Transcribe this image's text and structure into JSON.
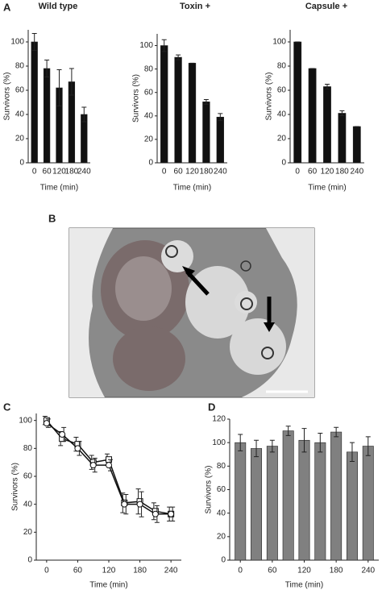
{
  "panels": {
    "a": "A",
    "b": "B",
    "c": "C",
    "d": "D"
  },
  "chart_data": [
    {
      "type": "bar",
      "title": "Wild type",
      "xlabel": "Time (min)",
      "ylabel": "Survivors (%)",
      "color": "#111111",
      "categories": [
        "0",
        "60",
        "120",
        "180",
        "240"
      ],
      "values": [
        100,
        78,
        62,
        67,
        40
      ],
      "errors": [
        7,
        7,
        15,
        11,
        6
      ],
      "ylim": [
        0,
        110
      ],
      "yticks": [
        0,
        20,
        40,
        60,
        80,
        100
      ]
    },
    {
      "type": "bar",
      "title": "Toxin +",
      "xlabel": "Time (min)",
      "ylabel": "Survivors (%)",
      "color": "#111111",
      "categories": [
        "0",
        "60",
        "120",
        "180",
        "240"
      ],
      "values": [
        100,
        90,
        85,
        52,
        39
      ],
      "errors": [
        5,
        2,
        0,
        2,
        3
      ],
      "ylim": [
        0,
        110
      ],
      "yticks": [
        0,
        20,
        40,
        60,
        80,
        100
      ]
    },
    {
      "type": "bar",
      "title": "Capsule +",
      "xlabel": "Time (min)",
      "ylabel": "Survivors (%)",
      "color": "#111111",
      "categories": [
        "0",
        "60",
        "120",
        "180",
        "240"
      ],
      "values": [
        100,
        78,
        63,
        41,
        30
      ],
      "errors": [
        0,
        0,
        2,
        2,
        0
      ],
      "ylim": [
        0,
        110
      ],
      "yticks": [
        0,
        20,
        40,
        60,
        80,
        100
      ]
    },
    {
      "type": "line",
      "xlabel": "Time (min)",
      "ylabel": "Survivors (%)",
      "x": [
        0,
        30,
        60,
        90,
        120,
        150,
        180,
        210,
        240
      ],
      "series": [
        {
          "color": "#111111",
          "marker": "square",
          "values": [
            100,
            87,
            83,
            70,
            72,
            41,
            42,
            35,
            33
          ],
          "errors": [
            3,
            5,
            5,
            5,
            4,
            7,
            9,
            6,
            5
          ]
        },
        {
          "color": "#111111",
          "marker": "circle",
          "values": [
            98,
            90,
            80,
            68,
            68,
            40,
            40,
            33,
            33
          ],
          "errors": [
            3,
            5,
            5,
            5,
            4,
            7,
            9,
            6,
            5
          ]
        }
      ],
      "xlim": [
        -20,
        260
      ],
      "xticks": [
        0,
        60,
        120,
        180,
        240
      ],
      "ylim": [
        0,
        105
      ],
      "yticks": [
        0,
        20,
        40,
        60,
        80,
        100
      ]
    },
    {
      "type": "bar",
      "xlabel": "Time (min)",
      "ylabel": "Survivors (%)",
      "color": "#808080",
      "x": [
        0,
        30,
        60,
        90,
        120,
        150,
        180,
        210,
        240
      ],
      "values": [
        100,
        95,
        97,
        110,
        102,
        100,
        109,
        92,
        97
      ],
      "errors": [
        7,
        7,
        5,
        4,
        10,
        8,
        4,
        8,
        8
      ],
      "xlim": [
        -20,
        260
      ],
      "xticks": [
        0,
        60,
        120,
        180,
        240
      ],
      "ylim": [
        0,
        120
      ],
      "yticks": [
        0,
        20,
        40,
        60,
        80,
        100,
        120
      ]
    }
  ]
}
